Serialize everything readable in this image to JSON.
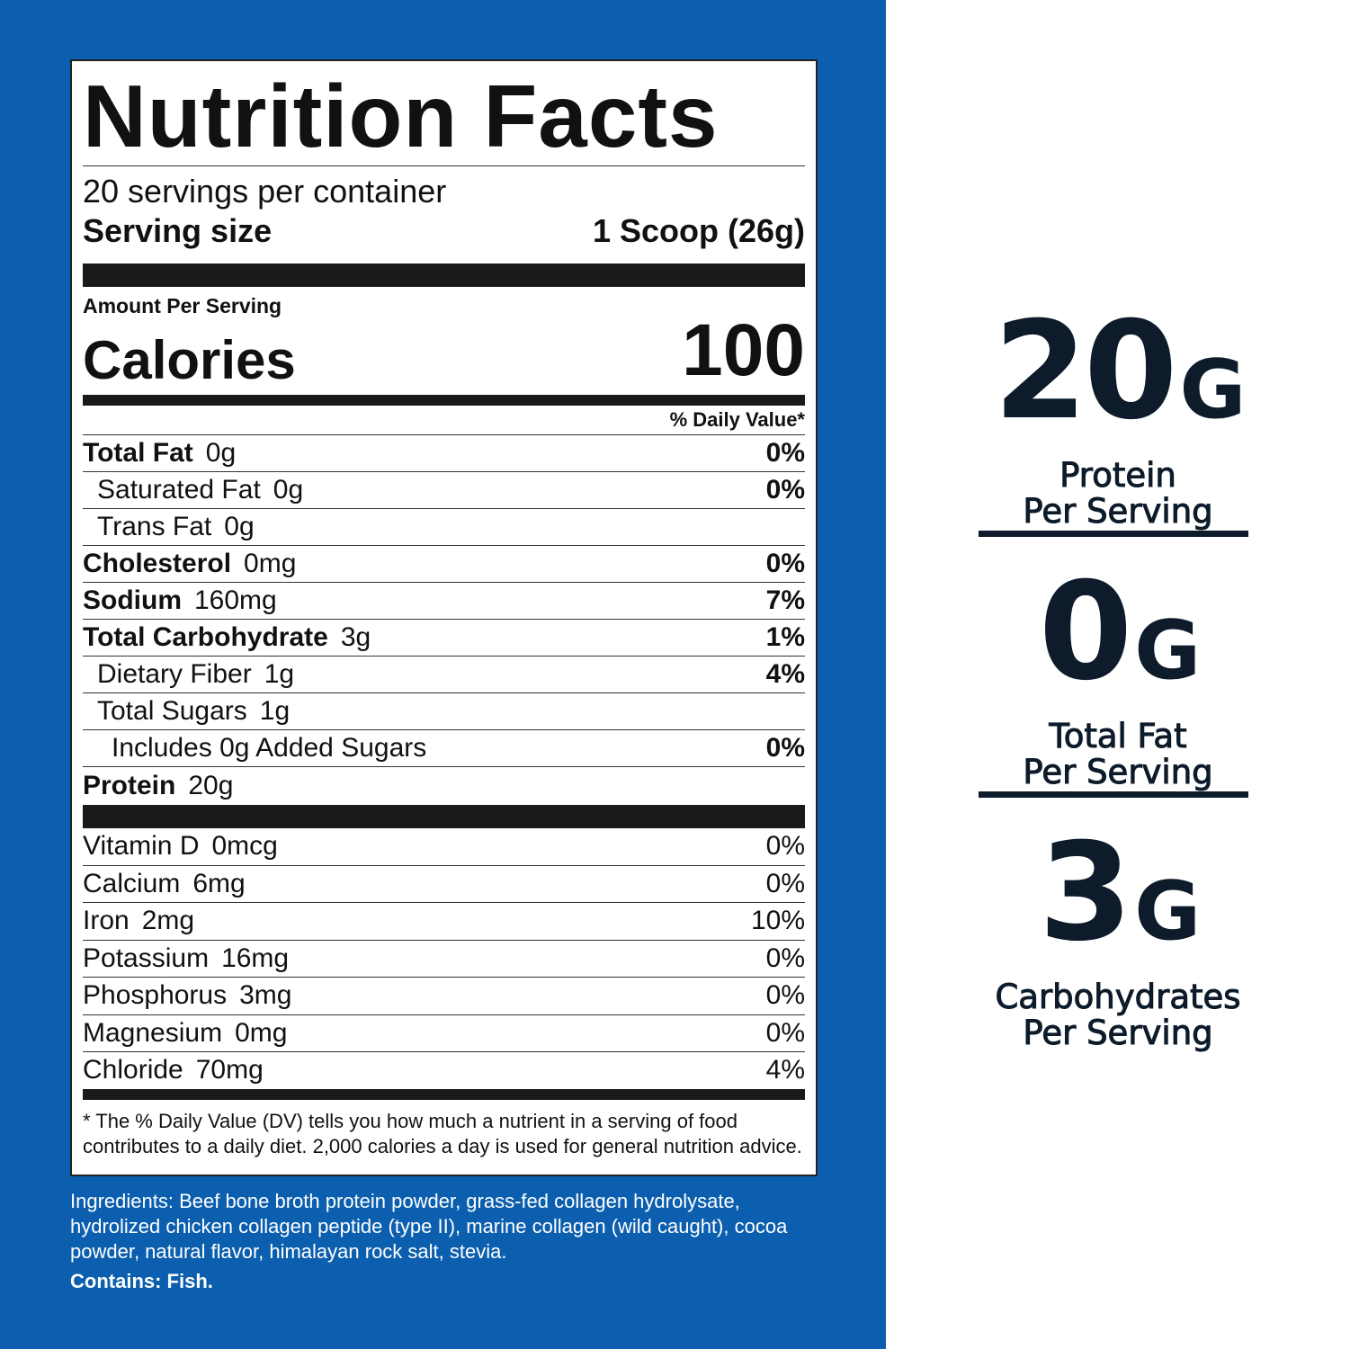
{
  "label": {
    "title": "Nutrition Facts",
    "servings": "20 servings per container",
    "serving_size_label": "Serving size",
    "serving_size": "1 Scoop (26g)",
    "amount_per_serving": "Amount Per Serving",
    "calories_label": "Calories",
    "calories": "100",
    "daily_value_header": "% Daily Value*",
    "nutrients": [
      {
        "name": "Total Fat",
        "amount": "0g",
        "dv": "0%"
      },
      {
        "name": "Saturated Fat",
        "amount": "0g",
        "dv": "0%"
      },
      {
        "name": "Trans Fat",
        "amount": "0g"
      },
      {
        "name": "Cholesterol",
        "amount": "0mg",
        "dv": "0%"
      },
      {
        "name": "Sodium",
        "amount": "160mg",
        "dv": "7%"
      },
      {
        "name": "Total Carbohydrate",
        "amount": "3g",
        "dv": "1%"
      },
      {
        "name": "Dietary Fiber",
        "amount": "1g",
        "dv": "4%"
      },
      {
        "name": "Total Sugars",
        "amount": "1g"
      },
      {
        "name": "Includes 0g Added Sugars",
        "dv": "0%"
      },
      {
        "name": "Protein",
        "amount": "20g"
      }
    ],
    "vitamins": [
      {
        "name": "Vitamin D",
        "amount": "0mcg",
        "dv": "0%"
      },
      {
        "name": "Calcium",
        "amount": "6mg",
        "dv": "0%"
      },
      {
        "name": "Iron",
        "amount": "2mg",
        "dv": "10%"
      },
      {
        "name": "Potassium",
        "amount": "16mg",
        "dv": "0%"
      },
      {
        "name": "Phosphorus",
        "amount": "3mg",
        "dv": "0%"
      },
      {
        "name": "Magnesium",
        "amount": "0mg",
        "dv": "0%"
      },
      {
        "name": "Chloride",
        "amount": "70mg",
        "dv": "4%"
      }
    ],
    "footnote": "* The % Daily Value (DV) tells you how much a nutrient in a serving of food contributes to a daily diet. 2,000 calories a day is used for general nutrition advice."
  },
  "ingredients": "Ingredients: Beef bone broth protein powder, grass-fed collagen hydrolysate, hydrolized chicken collagen peptide (type II), marine collagen (wild caught), cocoa powder, natural flavor, himalayan rock salt, stevia.",
  "contains": "Contains: Fish.",
  "highlights": [
    {
      "value": "20",
      "unit": "G",
      "lines": [
        "Protein",
        "Per Serving"
      ]
    },
    {
      "value": "0",
      "unit": "G",
      "lines": [
        "Total Fat",
        "Per Serving"
      ]
    },
    {
      "value": "3",
      "unit": "G",
      "lines": [
        "Carbohydrates",
        "Per Serving"
      ]
    }
  ]
}
